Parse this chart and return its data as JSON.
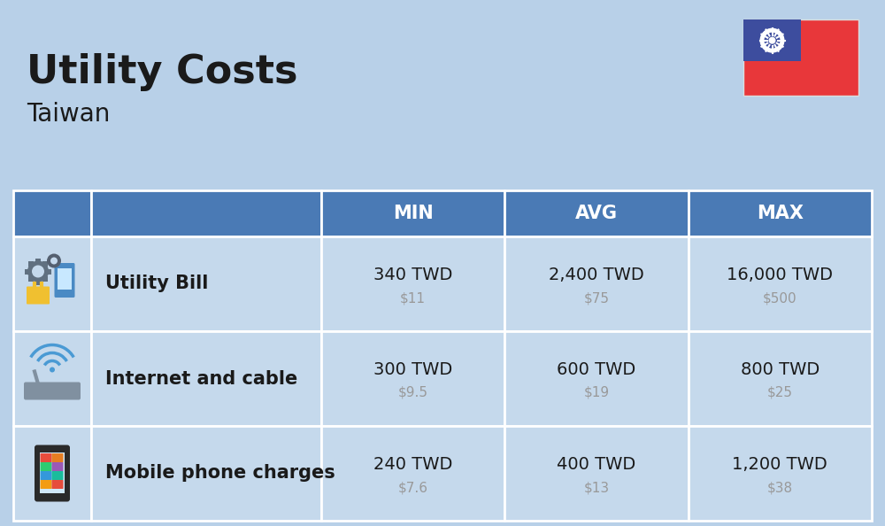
{
  "title": "Utility Costs",
  "subtitle": "Taiwan",
  "bg_color": "#b8d0e8",
  "header_bg": "#4a7ab5",
  "header_text_color": "#ffffff",
  "row_bg": "#c5d9ec",
  "border_color": "#ffffff",
  "text_color_main": "#1a1a1a",
  "text_color_sub": "#999999",
  "headers": [
    "MIN",
    "AVG",
    "MAX"
  ],
  "rows": [
    {
      "label": "Utility Bill",
      "min_twd": "340 TWD",
      "min_usd": "$11",
      "avg_twd": "2,400 TWD",
      "avg_usd": "$75",
      "max_twd": "16,000 TWD",
      "max_usd": "$500",
      "icon": "utility"
    },
    {
      "label": "Internet and cable",
      "min_twd": "300 TWD",
      "min_usd": "$9.5",
      "avg_twd": "600 TWD",
      "avg_usd": "$19",
      "max_twd": "800 TWD",
      "max_usd": "$25",
      "icon": "internet"
    },
    {
      "label": "Mobile phone charges",
      "min_twd": "240 TWD",
      "min_usd": "$7.6",
      "avg_twd": "400 TWD",
      "avg_usd": "$13",
      "max_twd": "1,200 TWD",
      "max_usd": "$38",
      "icon": "mobile"
    }
  ],
  "flag_red": "#e8373a",
  "flag_blue": "#3d4d9e",
  "flag_white": "#ffffff"
}
